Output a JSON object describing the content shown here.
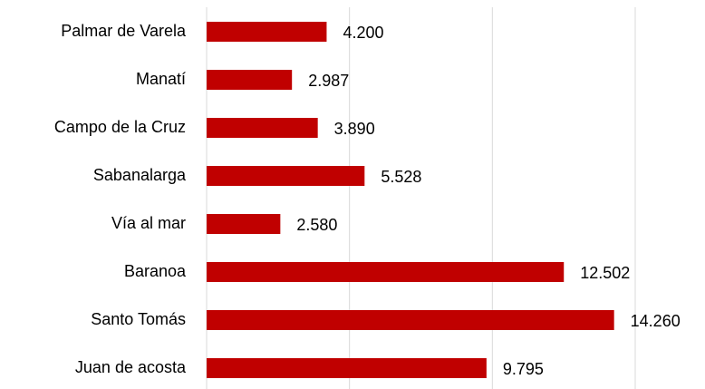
{
  "chart_data": {
    "type": "hbar",
    "categories": [
      "Palmar de Varela",
      "Manatí",
      "Campo de la Cruz",
      "Sabanalarga",
      "Vía al mar",
      "Baranoa",
      "Santo Tomás",
      "Juan de acosta"
    ],
    "values": [
      4200,
      2987,
      3890,
      5528,
      2580,
      12502,
      14260,
      9795
    ],
    "value_labels": [
      "4.200",
      "2.987",
      "3.890",
      "5.528",
      "2.580",
      "12.502",
      "14.260",
      "9.795"
    ],
    "color": "#c00000",
    "xlim": [
      0,
      15000
    ],
    "xticks": [
      0,
      5000,
      10000,
      15000
    ],
    "grid": true
  }
}
